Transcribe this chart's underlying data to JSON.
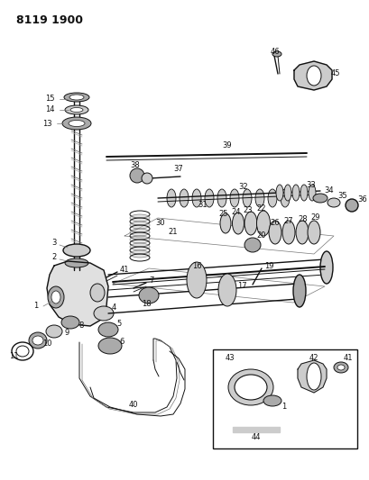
{
  "title": "8119 1900",
  "bg_color": "#ffffff",
  "fig_width": 4.1,
  "fig_height": 5.33,
  "dpi": 100
}
